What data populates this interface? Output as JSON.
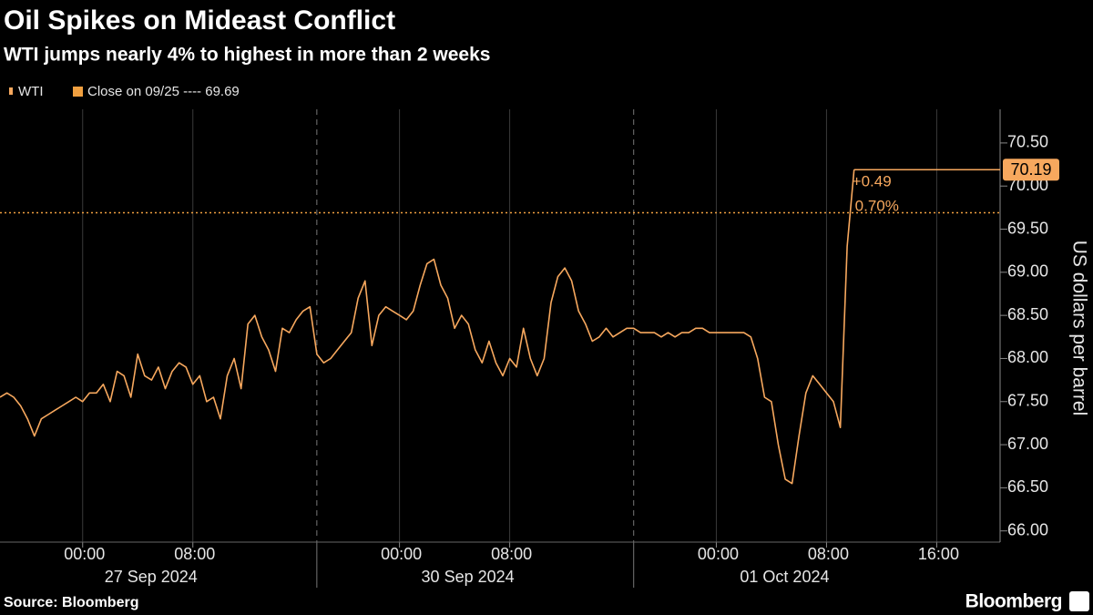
{
  "chart_data": {
    "type": "line",
    "title": "Oil Spikes on Mideast Conflict",
    "subtitle": "WTI jumps nearly 4% to highest in more than 2 weeks",
    "y_label": "US dollars per barrel",
    "source": "Source: Bloomberg",
    "brand": "Bloomberg",
    "x": [
      "2024-09-26T18:00",
      "2024-09-26T18:30",
      "2024-09-26T19:00",
      "2024-09-26T19:30",
      "2024-09-26T20:00",
      "2024-09-26T20:30",
      "2024-09-26T21:00",
      "2024-09-26T21:30",
      "2024-09-26T22:00",
      "2024-09-26T22:30",
      "2024-09-26T23:00",
      "2024-09-26T23:30",
      "2024-09-27T00:00",
      "2024-09-27T00:30",
      "2024-09-27T01:00",
      "2024-09-27T01:30",
      "2024-09-27T02:00",
      "2024-09-27T02:30",
      "2024-09-27T03:00",
      "2024-09-27T03:30",
      "2024-09-27T04:00",
      "2024-09-27T04:30",
      "2024-09-27T05:00",
      "2024-09-27T05:30",
      "2024-09-27T06:00",
      "2024-09-27T06:30",
      "2024-09-27T07:00",
      "2024-09-27T07:30",
      "2024-09-27T08:00",
      "2024-09-27T08:30",
      "2024-09-27T09:00",
      "2024-09-27T09:30",
      "2024-09-27T10:00",
      "2024-09-27T10:30",
      "2024-09-27T11:00",
      "2024-09-27T11:30",
      "2024-09-27T12:00",
      "2024-09-27T12:30",
      "2024-09-27T13:00",
      "2024-09-27T13:30",
      "2024-09-27T14:00",
      "2024-09-27T14:30",
      "2024-09-27T15:00",
      "2024-09-27T15:30",
      "2024-09-27T16:00",
      "2024-09-27T16:30",
      "2024-09-29T18:00",
      "2024-09-29T18:30",
      "2024-09-29T19:00",
      "2024-09-29T19:30",
      "2024-09-29T20:00",
      "2024-09-29T20:30",
      "2024-09-29T21:00",
      "2024-09-29T21:30",
      "2024-09-29T22:00",
      "2024-09-29T22:30",
      "2024-09-29T23:00",
      "2024-09-29T23:30",
      "2024-09-30T00:00",
      "2024-09-30T00:30",
      "2024-09-30T01:00",
      "2024-09-30T01:30",
      "2024-09-30T02:00",
      "2024-09-30T02:30",
      "2024-09-30T03:00",
      "2024-09-30T03:30",
      "2024-09-30T04:00",
      "2024-09-30T04:30",
      "2024-09-30T05:00",
      "2024-09-30T05:30",
      "2024-09-30T06:00",
      "2024-09-30T06:30",
      "2024-09-30T07:00",
      "2024-09-30T07:30",
      "2024-09-30T08:00",
      "2024-09-30T08:30",
      "2024-09-30T09:00",
      "2024-09-30T09:30",
      "2024-09-30T10:00",
      "2024-09-30T10:30",
      "2024-09-30T11:00",
      "2024-09-30T11:30",
      "2024-09-30T12:00",
      "2024-09-30T12:30",
      "2024-09-30T13:00",
      "2024-09-30T13:30",
      "2024-09-30T14:00",
      "2024-09-30T14:30",
      "2024-09-30T15:00",
      "2024-09-30T15:30",
      "2024-09-30T16:00",
      "2024-09-30T16:30",
      "2024-09-30T18:00",
      "2024-09-30T18:30",
      "2024-09-30T19:00",
      "2024-09-30T19:30",
      "2024-09-30T20:00",
      "2024-09-30T20:30",
      "2024-09-30T21:00",
      "2024-09-30T21:30",
      "2024-09-30T22:00",
      "2024-09-30T22:30",
      "2024-09-30T23:00",
      "2024-09-30T23:30",
      "2024-10-01T00:00",
      "2024-10-01T00:30",
      "2024-10-01T01:00",
      "2024-10-01T01:30",
      "2024-10-01T02:00",
      "2024-10-01T02:30",
      "2024-10-01T03:00",
      "2024-10-01T03:30",
      "2024-10-01T04:00",
      "2024-10-01T04:30",
      "2024-10-01T05:00",
      "2024-10-01T05:30",
      "2024-10-01T06:00",
      "2024-10-01T06:30",
      "2024-10-01T07:00",
      "2024-10-01T07:30",
      "2024-10-01T08:00",
      "2024-10-01T08:30",
      "2024-10-01T09:00",
      "2024-10-01T09:30",
      "2024-10-01T10:00",
      "2024-10-01T10:30",
      "2024-10-01T11:00",
      "2024-10-01T11:30",
      "2024-10-01T12:00",
      "2024-10-01T12:30",
      "2024-10-01T13:00",
      "2024-10-01T13:30",
      "2024-10-01T14:00",
      "2024-10-01T14:30",
      "2024-10-01T15:00",
      "2024-10-01T15:30",
      "2024-10-01T16:00",
      "2024-10-01T16:30",
      "2024-10-01T17:00",
      "2024-10-01T17:30",
      "2024-10-01T18:00",
      "2024-10-01T18:30",
      "2024-10-01T19:00",
      "2024-10-01T19:30",
      "2024-10-01T20:00",
      "2024-10-01T20:30"
    ],
    "series": [
      {
        "name": "WTI",
        "color": "#f7a85e",
        "values": [
          67.55,
          67.6,
          67.55,
          67.45,
          67.3,
          67.1,
          67.3,
          67.35,
          67.4,
          67.45,
          67.5,
          67.55,
          67.5,
          67.6,
          67.6,
          67.7,
          67.5,
          67.85,
          67.8,
          67.55,
          68.05,
          67.8,
          67.75,
          67.9,
          67.65,
          67.85,
          67.95,
          67.9,
          67.7,
          67.8,
          67.5,
          67.55,
          67.3,
          67.8,
          68.0,
          67.65,
          68.4,
          68.5,
          68.25,
          68.1,
          67.85,
          68.35,
          68.3,
          68.45,
          68.55,
          68.6,
          68.05,
          67.95,
          68.0,
          68.1,
          68.2,
          68.3,
          68.7,
          68.9,
          68.15,
          68.5,
          68.6,
          68.55,
          68.5,
          68.45,
          68.55,
          68.85,
          69.1,
          69.15,
          68.85,
          68.7,
          68.35,
          68.5,
          68.4,
          68.1,
          67.95,
          68.2,
          67.95,
          67.8,
          68.0,
          67.9,
          68.35,
          68.0,
          67.8,
          68.0,
          68.65,
          68.95,
          69.05,
          68.9,
          68.55,
          68.4,
          68.2,
          68.25,
          68.35,
          68.25,
          68.3,
          68.35,
          68.35,
          68.3,
          68.3,
          68.3,
          68.25,
          68.3,
          68.25,
          68.3,
          68.3,
          68.35,
          68.35,
          68.3,
          68.3,
          68.3,
          68.3,
          68.3,
          68.3,
          68.25,
          68.0,
          67.55,
          67.5,
          67.0,
          66.6,
          66.55,
          67.1,
          67.6,
          67.8,
          67.7,
          67.6,
          67.5,
          67.2,
          69.3,
          70.19,
          null,
          null,
          null,
          null,
          null,
          null,
          null,
          null,
          null,
          null,
          null,
          null,
          null,
          null,
          null,
          null,
          null,
          null,
          null,
          null,
          null
        ]
      }
    ],
    "reference_line": {
      "label": "Close on 09/25 ---- 69.69",
      "value": 69.69,
      "color": "#f0a040"
    },
    "change": {
      "value": 0.49,
      "label": "+0.49"
    },
    "change_pct": {
      "value": 0.7,
      "label": "0.70%"
    },
    "ylim": [
      65.87,
      70.89
    ],
    "yticks": [
      {
        "value": 66,
        "label": "66.00"
      },
      {
        "value": 66.5,
        "label": "66.50"
      },
      {
        "value": 67,
        "label": "67.00"
      },
      {
        "value": 67.5,
        "label": "67.50"
      },
      {
        "value": 68,
        "label": "68.00"
      },
      {
        "value": 68.5,
        "label": "68.50"
      },
      {
        "value": 69,
        "label": "69.00"
      },
      {
        "value": 69.5,
        "label": "69.50"
      },
      {
        "value": 70,
        "label": "70.00"
      },
      {
        "value": 70.5,
        "label": "70.50"
      }
    ],
    "xticks": [
      {
        "value": "2024-09-27T00:00",
        "label": "00:00"
      },
      {
        "value": "2024-09-27T08:00",
        "label": "08:00"
      },
      {
        "value": "2024-09-30T00:00",
        "label": "00:00"
      },
      {
        "value": "2024-09-30T08:00",
        "label": "08:00"
      },
      {
        "value": "2024-10-01T00:00",
        "label": "00:00"
      },
      {
        "value": "2024-10-01T08:00",
        "label": "08:00"
      },
      {
        "value": "2024-10-01T16:00",
        "label": "16:00"
      }
    ],
    "date_labels": [
      {
        "value": "2024-09-27T00:00",
        "label": "27 Sep 2024"
      },
      {
        "value": "2024-09-30T00:00",
        "label": "30 Sep 2024"
      },
      {
        "value": "2024-10-01T00:00",
        "label": "01 Oct 2024"
      }
    ],
    "grid": true
  }
}
